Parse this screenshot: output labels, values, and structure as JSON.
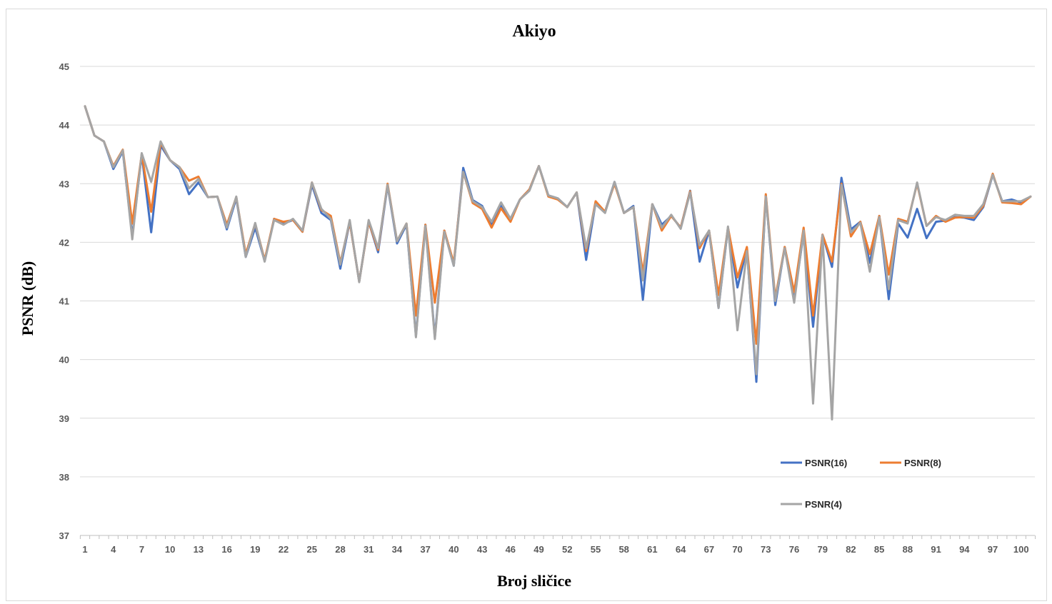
{
  "chart_data": {
    "type": "line",
    "title": "Akiyo",
    "xlabel": "Broj sličice",
    "ylabel": "PSNR (dB)",
    "ylim": [
      37,
      45
    ],
    "yticks": [
      "37",
      "38",
      "39",
      "40",
      "41",
      "42",
      "43",
      "44",
      "45"
    ],
    "xticks": [
      "1",
      "4",
      "7",
      "10",
      "13",
      "16",
      "19",
      "22",
      "25",
      "28",
      "31",
      "34",
      "37",
      "40",
      "43",
      "46",
      "49",
      "52",
      "55",
      "58",
      "61",
      "64",
      "67",
      "70",
      "73",
      "76",
      "79",
      "82",
      "85",
      "88",
      "91",
      "94",
      "97",
      "100"
    ],
    "grid": "horizontal",
    "legend_position": "bottom-right",
    "colors": {
      "PSNR(16)": "#4472c4",
      "PSNR(8)": "#ed7d31",
      "PSNR(4)": "#a5a5a5"
    },
    "x": [
      1,
      2,
      3,
      4,
      5,
      6,
      7,
      8,
      9,
      10,
      11,
      12,
      13,
      14,
      15,
      16,
      17,
      18,
      19,
      20,
      21,
      22,
      23,
      24,
      25,
      26,
      27,
      28,
      29,
      30,
      31,
      32,
      33,
      34,
      35,
      36,
      37,
      38,
      39,
      40,
      41,
      42,
      43,
      44,
      45,
      46,
      47,
      48,
      49,
      50,
      51,
      52,
      53,
      54,
      55,
      56,
      57,
      58,
      59,
      60,
      61,
      62,
      63,
      64,
      65,
      66,
      67,
      68,
      69,
      70,
      71,
      72,
      73,
      74,
      75,
      76,
      77,
      78,
      79,
      80,
      81,
      82,
      83,
      84,
      85,
      86,
      87,
      88,
      89,
      90,
      91,
      92,
      93,
      94,
      95,
      96,
      97,
      98,
      99,
      100,
      101
    ],
    "series": [
      {
        "name": "PSNR(16)",
        "values": [
          44.32,
          43.82,
          43.72,
          43.25,
          43.55,
          42.1,
          43.5,
          42.17,
          43.65,
          43.4,
          43.25,
          42.82,
          43.02,
          42.77,
          42.78,
          42.22,
          42.75,
          41.75,
          42.25,
          41.68,
          42.4,
          42.32,
          42.38,
          42.18,
          42.98,
          42.5,
          42.38,
          41.55,
          42.35,
          41.33,
          42.35,
          41.83,
          42.97,
          41.98,
          42.3,
          40.4,
          42.3,
          40.38,
          42.2,
          41.6,
          43.27,
          42.72,
          42.62,
          42.3,
          42.63,
          42.4,
          42.73,
          42.9,
          43.3,
          42.8,
          42.75,
          42.6,
          42.85,
          41.7,
          42.67,
          42.52,
          43.03,
          42.5,
          42.62,
          41.02,
          42.65,
          42.3,
          42.45,
          42.25,
          42.88,
          41.67,
          42.2,
          40.88,
          42.25,
          41.23,
          41.9,
          39.62,
          42.8,
          40.93,
          41.92,
          41.05,
          42.15,
          40.56,
          42.13,
          41.58,
          43.1,
          42.22,
          42.35,
          41.65,
          42.45,
          41.03,
          42.32,
          42.08,
          42.57,
          42.07,
          42.35,
          42.37,
          42.43,
          42.42,
          42.38,
          42.6,
          43.15,
          42.7,
          42.73,
          42.68,
          42.78
        ]
      },
      {
        "name": "PSNR(8)",
        "values": [
          44.32,
          43.82,
          43.72,
          43.3,
          43.58,
          42.32,
          43.5,
          42.52,
          43.7,
          43.4,
          43.28,
          43.05,
          43.12,
          42.77,
          42.78,
          42.3,
          42.77,
          41.8,
          42.32,
          41.7,
          42.4,
          42.35,
          42.38,
          42.18,
          43.02,
          42.55,
          42.45,
          41.65,
          42.35,
          41.33,
          42.35,
          41.87,
          43.0,
          42.02,
          42.32,
          40.75,
          42.3,
          40.97,
          42.2,
          41.65,
          43.2,
          42.67,
          42.57,
          42.25,
          42.58,
          42.35,
          42.73,
          42.9,
          43.3,
          42.78,
          42.73,
          42.6,
          42.85,
          41.85,
          42.7,
          42.52,
          43.0,
          42.5,
          42.6,
          41.48,
          42.65,
          42.2,
          42.45,
          42.25,
          42.87,
          41.9,
          42.2,
          41.1,
          42.25,
          41.4,
          41.92,
          40.27,
          42.82,
          41.05,
          41.92,
          41.15,
          42.25,
          40.75,
          42.13,
          41.67,
          43.0,
          42.1,
          42.35,
          41.8,
          42.45,
          41.45,
          42.4,
          42.35,
          43.0,
          42.28,
          42.45,
          42.35,
          42.42,
          42.43,
          42.42,
          42.62,
          43.17,
          42.68,
          42.67,
          42.65,
          42.78
        ]
      },
      {
        "name": "PSNR(4)",
        "values": [
          44.32,
          43.82,
          43.72,
          43.28,
          43.57,
          42.05,
          43.52,
          43.03,
          43.72,
          43.4,
          43.28,
          42.92,
          43.08,
          42.77,
          42.78,
          42.25,
          42.78,
          41.75,
          42.33,
          41.67,
          42.38,
          42.3,
          42.4,
          42.2,
          43.02,
          42.57,
          42.4,
          41.62,
          42.38,
          41.32,
          42.38,
          41.9,
          42.98,
          42.02,
          42.32,
          40.38,
          42.28,
          40.35,
          42.18,
          41.6,
          43.2,
          42.7,
          42.6,
          42.35,
          42.68,
          42.4,
          42.73,
          42.88,
          43.3,
          42.8,
          42.75,
          42.6,
          42.85,
          41.9,
          42.65,
          42.5,
          43.03,
          42.5,
          42.6,
          41.35,
          42.65,
          42.25,
          42.47,
          42.23,
          42.85,
          41.95,
          42.2,
          40.88,
          42.27,
          40.5,
          41.85,
          39.75,
          42.78,
          41.0,
          41.9,
          40.97,
          42.2,
          39.25,
          42.12,
          38.98,
          42.98,
          42.17,
          42.33,
          41.5,
          42.43,
          41.2,
          42.38,
          42.32,
          43.02,
          42.28,
          42.43,
          42.38,
          42.47,
          42.45,
          42.45,
          42.65,
          43.15,
          42.7,
          42.7,
          42.7,
          42.78
        ]
      }
    ]
  }
}
